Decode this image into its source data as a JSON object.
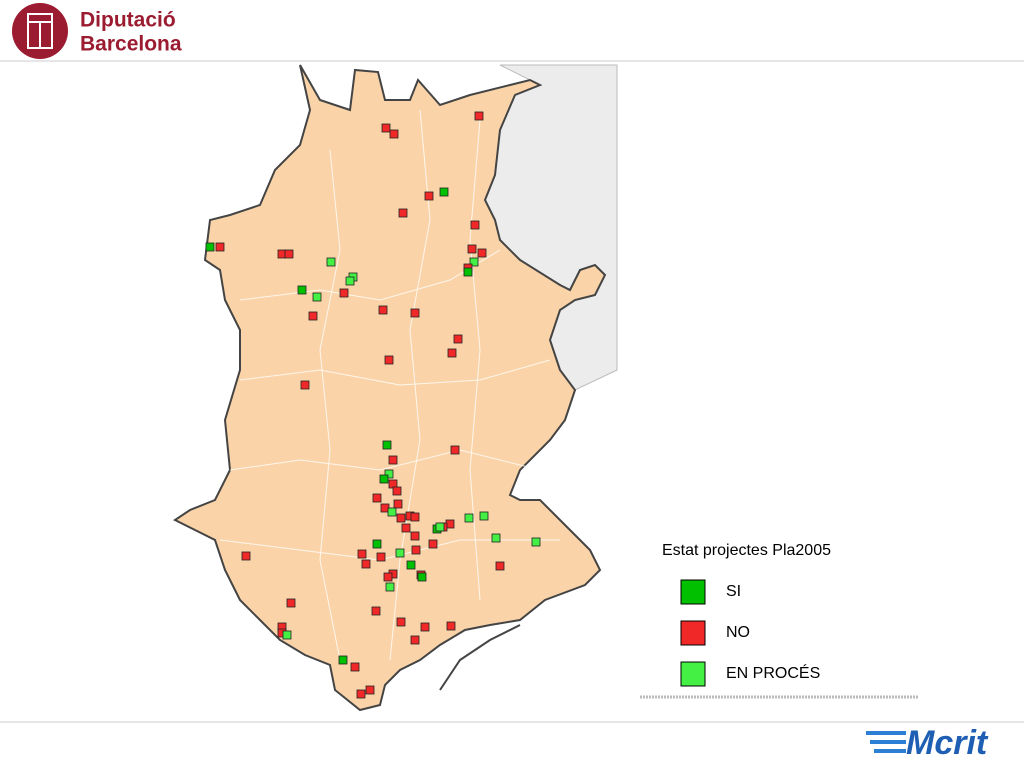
{
  "header": {
    "org_line1": "Diputació",
    "org_line2": "Barcelona"
  },
  "legend": {
    "title": "Estat projectes Pla2005",
    "items": [
      {
        "label": "SI",
        "color": "#00c000"
      },
      {
        "label": "NO",
        "color": "#f02828"
      },
      {
        "label": "EN PROCÉS",
        "color": "#44f044"
      }
    ]
  },
  "footer": {
    "brand": "Mcrit"
  }
}
